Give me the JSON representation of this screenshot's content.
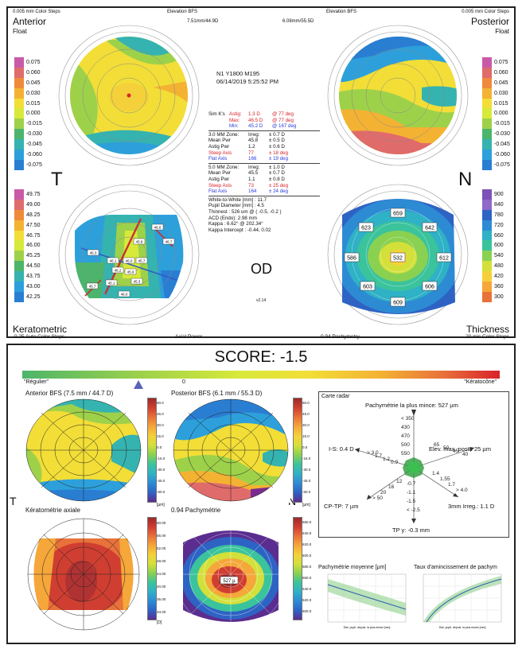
{
  "top": {
    "left_header": "0.005 mm Color Steps",
    "center_header": "Elevation BFS",
    "center_header_right": "Elevation BFS",
    "right_header": "0.005 mm Color Steps",
    "anterior_title": "Anterior",
    "anterior_sub": "Float",
    "posterior_title": "Posterior",
    "posterior_sub": "Float",
    "ant_bfs": "7.51mm/44.9D",
    "post_bfs": "6.08mm/55.5D",
    "patient_line1": "N1 Y1800 M195",
    "patient_line2": "06/14/2019 5:25:52 PM",
    "t_label": "T",
    "n_label": "N",
    "od_label": "OD",
    "version": "v2.14",
    "keratometric_title": "Keratometric",
    "keratometric_sub": "0.25 Auto Color Steps",
    "axial_power": "Axial Power",
    "pachymetry_center": "0.94 Pachymetry",
    "thickness_title": "Thickness",
    "thickness_sub": "20 mic Color Steps",
    "elev_scale": [
      "0.075",
      "0.060",
      "0.045",
      "0.030",
      "0.015",
      "0.000",
      "-0.015",
      "-0.030",
      "-0.045",
      "-0.060",
      "-0.075"
    ],
    "kera_scale": [
      "49.75",
      "49.00",
      "48.25",
      "47.50",
      "46.75",
      "46.00",
      "45.25",
      "44.50",
      "43.75",
      "43.00",
      "42.25"
    ],
    "thick_scale": [
      "900",
      "840",
      "780",
      "720",
      "660",
      "600",
      "540",
      "480",
      "420",
      "360",
      "300"
    ],
    "simk": [
      {
        "a": "Sim K's",
        "b": "Astig:",
        "c": "1.3 D",
        "d": "@ 77 deg",
        "cls": "red"
      },
      {
        "a": "",
        "b": "Max:",
        "c": "46.5 D",
        "d": "@ 77 deg",
        "cls": "red"
      },
      {
        "a": "",
        "b": "Min:",
        "c": "45.2 D",
        "d": "@ 167 deg",
        "cls": "blue"
      }
    ],
    "zone3": [
      {
        "a": "3.0 MM Zone:",
        "b": "Irreg:",
        "c": "± 0.7 D",
        "cls": ""
      },
      {
        "a": "Mean Pwr",
        "b": "45.8",
        "c": "± 0.5 D",
        "cls": ""
      },
      {
        "a": "Astig Pwr",
        "b": "1.2",
        "c": "± 0.6 D",
        "cls": ""
      },
      {
        "a": "Steep Axis",
        "b": "77",
        "c": "± 18 deg",
        "cls": "red"
      },
      {
        "a": "Flat Axis",
        "b": "166",
        "c": "± 19 deg",
        "cls": "blue"
      }
    ],
    "zone5": [
      {
        "a": "5.0 MM Zone:",
        "b": "Irreg:",
        "c": "± 1.0 D",
        "cls": ""
      },
      {
        "a": "Mean Pwr",
        "b": "45.5",
        "c": "± 0.7 D",
        "cls": ""
      },
      {
        "a": "Astig Pwr",
        "b": "1.1",
        "c": "± 0.8 D",
        "cls": ""
      },
      {
        "a": "Steep Axis",
        "b": "73",
        "c": "± 25 deg",
        "cls": "red"
      },
      {
        "a": "Flat Axis",
        "b": "164",
        "c": "± 24 deg",
        "cls": "blue"
      }
    ],
    "misc": [
      "White-to-White [mm] : 11.7",
      "Pupil Diameter [mm] : 4.5",
      "Thinnest : 526 um @ ( -0.5, -0.2 )",
      "ACD (Endo): 2.98 mm",
      "Kappa : 6.62° @ 202.34°",
      "Kappa Intercept : -0.44, 0.02"
    ],
    "pachy_values": [
      "659",
      "623",
      "642",
      "586",
      "532",
      "612",
      "603",
      "606",
      "609"
    ],
    "kera_values": [
      "46.6",
      "45.8",
      "46.7",
      "46.3",
      "46.1",
      "46.0",
      "45.7",
      "46.2",
      "45.9",
      "45.3",
      "45.1",
      "46.0",
      "45.7"
    ]
  },
  "bottom": {
    "score_title": "SCORE: -1.5",
    "regulier": "\"Régulier\"",
    "zero": "0",
    "keratocone": "\"Kératocône\"",
    "ant_bfs": "Anterior BFS (7.5 mm / 44.7 D)",
    "post_bfs": "Posterior BFS (6.1 mm / 55.3 D)",
    "t_label": "T",
    "n_label": "N",
    "kerato_axiale": "Kératométrie axiale",
    "pachymetrie": "0.94  Pachymétrie",
    "unit_um": "[µm]",
    "unit_d": "[D]",
    "pachy_center": "527 µ",
    "radar_title": "Carte radar",
    "radar_top": "Pachymétrie la plus mince: 527 µm",
    "radar_is": "I-S: 0.4 D",
    "radar_elev": "Elev. max. post.: 25 µm",
    "radar_cptp": "CP-TP: 7 µm",
    "radar_irreg": "3mm Irreg.: 1.1 D",
    "radar_tpy": "TP y: -0.3 mm",
    "radar_scale_top": [
      "< 350",
      "430",
      "470",
      "500",
      "550"
    ],
    "radar_scale_bottom": [
      "-0.7",
      "-1.1",
      "-1.5",
      "< -2.5"
    ],
    "radar_left": [
      "> 3.0",
      "1.7",
      "1.2",
      "0.9"
    ],
    "radar_right_up": [
      "40",
      "45",
      "50",
      "65"
    ],
    "radar_right_down": [
      "1.4",
      "1.55",
      "1.7",
      "> 4.0"
    ],
    "radar_left_down": [
      "12",
      "16",
      "20",
      "> 50"
    ],
    "chart1_title": "Pachymétrie moyenne [µm]",
    "chart2_title": "Taux d'amincissement de pachym",
    "chart_xlabel": "Dist. pupil. depuis. la plus mince [mm]",
    "ant_scale": [
      "60.0",
      "45.0",
      "30.0",
      "15.0",
      "0.0",
      "-15.0",
      "-30.0",
      "-45.0",
      "-60.0"
    ],
    "post_scale": [
      "60.0",
      "45.0",
      "30.0",
      "15.0",
      "0.0",
      "-15.0",
      "-30.0",
      "-45.0",
      "-60.0"
    ],
    "kera_scale": [
      "60.00",
      "56.00",
      "52.00",
      "48.00",
      "44.00",
      "40.00",
      "36.00",
      "34.00"
    ],
    "pachy_scale": [
      "660.0",
      "640.0",
      "620.0",
      "600.0",
      "580.0",
      "560.0",
      "540.0",
      "520.0",
      "500.0"
    ]
  },
  "colors": {
    "elev": [
      "#7a2b8e",
      "#a63d9b",
      "#c95aa8",
      "#e06b6b",
      "#ef8a3a",
      "#f4b233",
      "#f2de37",
      "#d7e93a",
      "#9ed14a",
      "#4cb56b",
      "#35b3b0",
      "#2da0db",
      "#2a7ed2",
      "#2f5bc7",
      "#2c3a9f"
    ],
    "thick": [
      "#5b2d8f",
      "#6f3fa6",
      "#7d52b8",
      "#8f68c8",
      "#2e63c4",
      "#2d8bd4",
      "#2fb1c6",
      "#3bc39c",
      "#8ad152",
      "#d3e03a",
      "#f4d13a",
      "#f5a73a",
      "#e8723a",
      "#cf3e31",
      "#9b2a2a"
    ]
  }
}
